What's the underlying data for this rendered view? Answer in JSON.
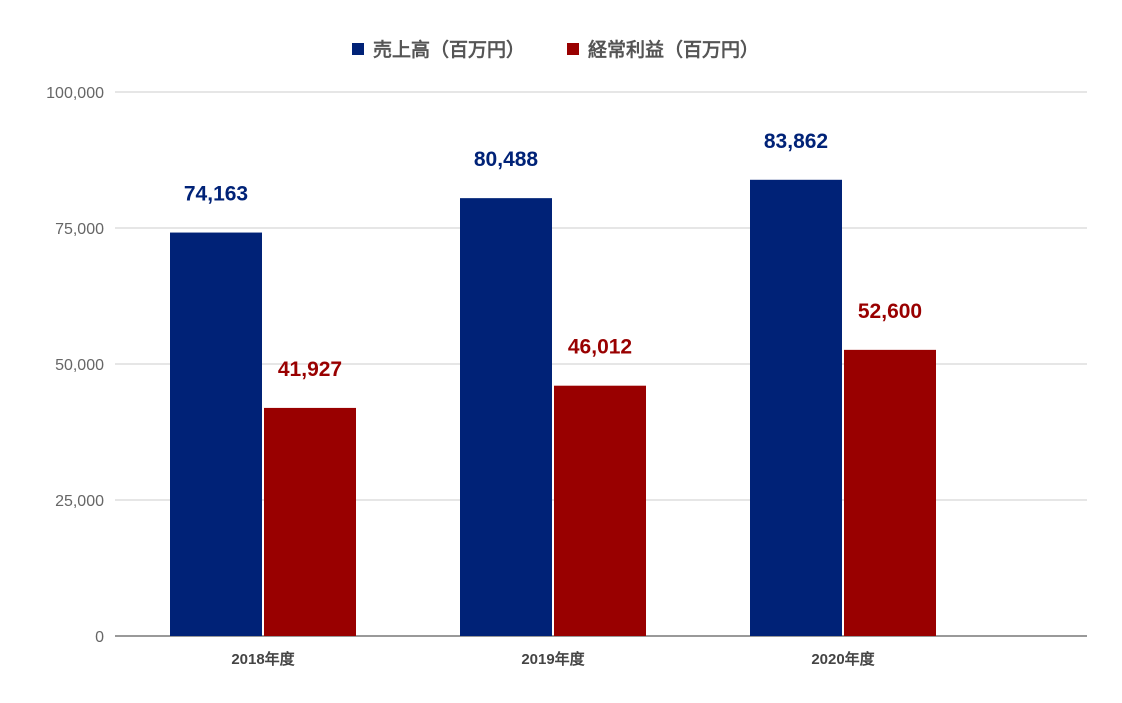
{
  "chart_data": {
    "type": "bar",
    "title": "",
    "xlabel": "",
    "ylabel": "",
    "categories": [
      "2018年度",
      "2019年度",
      "2020年度"
    ],
    "series": [
      {
        "name": "売上高（百万円）",
        "color": "#002277",
        "values": [
          74163,
          80488,
          83862
        ],
        "labels": [
          "74,163",
          "80,488",
          "83,862"
        ]
      },
      {
        "name": "経常利益（百万円）",
        "color": "#990000",
        "values": [
          41927,
          46012,
          52600
        ],
        "labels": [
          "41,927",
          "46,012",
          "52,600"
        ]
      }
    ],
    "ylim": [
      0,
      100000
    ],
    "yticks": [
      0,
      25000,
      50000,
      75000,
      100000
    ],
    "ytick_labels": [
      "0",
      "25,000",
      "50,000",
      "75,000",
      "100,000"
    ],
    "grid": true,
    "legend_position": "top-center"
  }
}
